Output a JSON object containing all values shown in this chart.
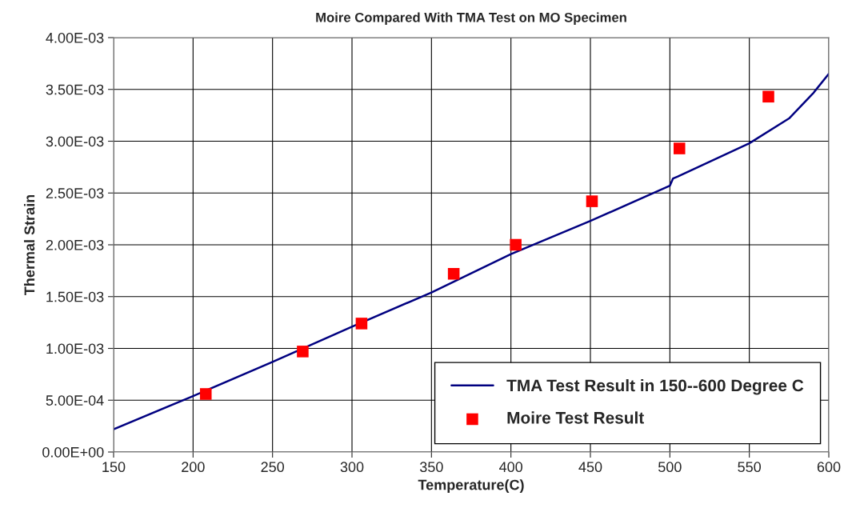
{
  "chart_data": {
    "type": "line",
    "title": "Moire Compared With TMA Test on MO Specimen",
    "xlabel": "Temperature(C)",
    "ylabel": "Thermal Strain",
    "xlim": [
      150,
      600
    ],
    "xticks": [
      150,
      200,
      250,
      300,
      350,
      400,
      450,
      500,
      550,
      600
    ],
    "ylim": [
      0,
      0.004
    ],
    "yticks": [
      {
        "value": 0,
        "label": "0.00E+00"
      },
      {
        "value": 0.0005,
        "label": "5.00E-04"
      },
      {
        "value": 0.001,
        "label": "1.00E-03"
      },
      {
        "value": 0.0015,
        "label": "1.50E-03"
      },
      {
        "value": 0.002,
        "label": "2.00E-03"
      },
      {
        "value": 0.0025,
        "label": "2.50E-03"
      },
      {
        "value": 0.003,
        "label": "3.00E-03"
      },
      {
        "value": 0.0035,
        "label": "3.50E-03"
      },
      {
        "value": 0.004,
        "label": "4.00E-03"
      }
    ],
    "grid": true,
    "legend": "bottom right",
    "series": [
      {
        "name": "TMA Test Result in 150--600 Degree C",
        "color": "#000080",
        "marker": "none",
        "line_style": "solid",
        "x": [
          150,
          200,
          250,
          300,
          350,
          400,
          450,
          500,
          502,
          505,
          550,
          575,
          590,
          600
        ],
        "values": [
          0.00022,
          0.00054,
          0.00087,
          0.00121,
          0.00154,
          0.00191,
          0.00223,
          0.00257,
          0.00264,
          0.00266,
          0.00298,
          0.00322,
          0.00346,
          0.00365
        ]
      },
      {
        "name": "Moire Test Result",
        "type": "scatter",
        "color": "#ff0000",
        "marker": "square",
        "x": [
          208,
          269,
          306,
          364,
          403,
          451,
          506,
          562
        ],
        "values": [
          0.00056,
          0.00097,
          0.00124,
          0.00172,
          0.002,
          0.00242,
          0.00293,
          0.00343
        ]
      }
    ]
  }
}
